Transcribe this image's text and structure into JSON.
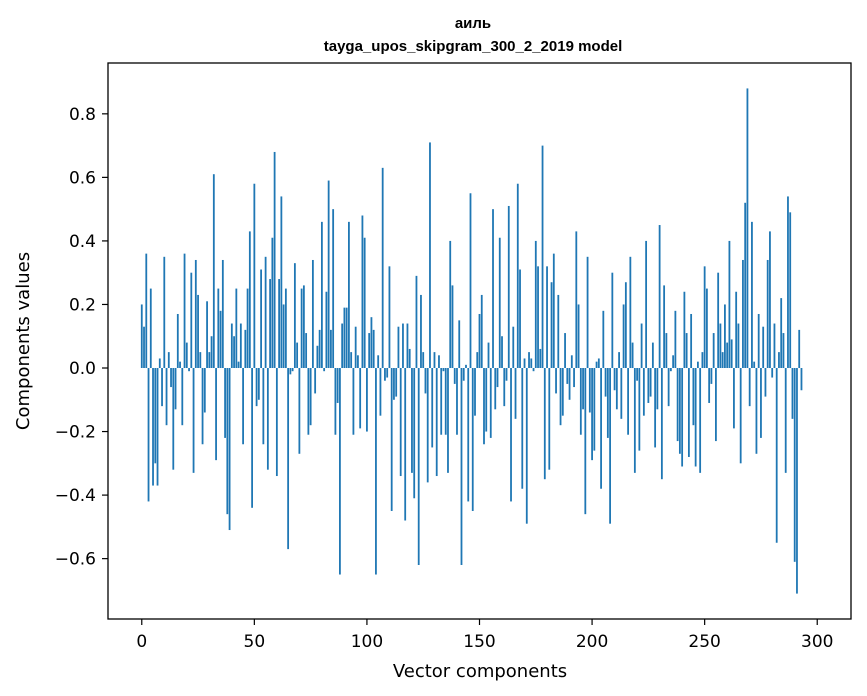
{
  "chart_data": {
    "type": "bar",
    "title": "аиль",
    "subtitle": "tayga_upos_skipgram_300_2_2019 model",
    "xlabel": "Vector components",
    "ylabel": "Components values",
    "xlim": [
      -15,
      315
    ],
    "ylim": [
      -0.79,
      0.96
    ],
    "x_ticks": [
      0,
      50,
      100,
      150,
      200,
      250,
      300
    ],
    "y_ticks": [
      -0.6,
      -0.4,
      -0.2,
      0.0,
      0.2,
      0.4,
      0.6,
      0.8
    ],
    "y_tick_labels": [
      "−0.6",
      "−0.4",
      "−0.2",
      "0.0",
      "0.2",
      "0.4",
      "0.6",
      "0.8"
    ],
    "bar_color": "#1f77b4",
    "grid": false,
    "values": [
      0.2,
      0.13,
      0.36,
      -0.42,
      0.25,
      -0.37,
      -0.3,
      -0.37,
      0.03,
      -0.12,
      0.35,
      -0.18,
      0.05,
      -0.06,
      -0.32,
      -0.13,
      0.17,
      0.02,
      -0.18,
      0.36,
      0.08,
      -0.01,
      0.3,
      -0.33,
      0.34,
      0.23,
      0.05,
      -0.24,
      -0.14,
      0.21,
      0.05,
      0.1,
      0.61,
      -0.29,
      0.25,
      0.18,
      0.34,
      -0.22,
      -0.46,
      -0.51,
      0.14,
      0.1,
      0.25,
      0.02,
      0.14,
      -0.24,
      0.12,
      0.25,
      0.43,
      -0.44,
      0.58,
      -0.12,
      -0.1,
      0.31,
      -0.24,
      0.35,
      -0.32,
      0.28,
      0.41,
      0.68,
      -0.34,
      0.28,
      0.54,
      0.2,
      0.25,
      -0.57,
      -0.02,
      -0.01,
      0.33,
      0.08,
      -0.27,
      0.25,
      0.26,
      0.11,
      -0.21,
      -0.18,
      0.34,
      -0.08,
      0.07,
      0.12,
      0.46,
      -0.01,
      0.24,
      0.59,
      0.12,
      0.5,
      -0.21,
      -0.11,
      -0.65,
      0.14,
      0.19,
      0.19,
      0.46,
      0.05,
      -0.21,
      0.13,
      0.04,
      -0.19,
      0.48,
      0.41,
      -0.2,
      0.11,
      0.16,
      0.12,
      -0.65,
      0.04,
      -0.15,
      0.63,
      -0.04,
      -0.03,
      0.32,
      -0.45,
      -0.1,
      -0.09,
      0.13,
      -0.34,
      0.14,
      -0.48,
      0.14,
      0.06,
      -0.33,
      -0.41,
      0.29,
      -0.62,
      0.23,
      0.05,
      -0.08,
      -0.36,
      0.71,
      -0.25,
      0.05,
      -0.34,
      0.04,
      -0.21,
      -0.01,
      -0.21,
      -0.33,
      0.4,
      0.26,
      -0.05,
      -0.21,
      0.15,
      -0.62,
      -0.04,
      0.01,
      -0.42,
      0.55,
      -0.45,
      -0.15,
      0.05,
      0.17,
      0.23,
      -0.24,
      -0.2,
      0.08,
      -0.22,
      0.5,
      -0.13,
      -0.06,
      0.41,
      0.1,
      -0.12,
      -0.04,
      0.51,
      -0.42,
      0.13,
      -0.16,
      0.58,
      0.31,
      -0.38,
      0.03,
      -0.49,
      0.05,
      0.03,
      -0.01,
      0.4,
      0.32,
      0.06,
      0.7,
      -0.35,
      0.32,
      -0.32,
      0.27,
      0.36,
      -0.08,
      0.23,
      -0.18,
      -0.15,
      0.11,
      -0.05,
      -0.1,
      0.04,
      -0.06,
      0.43,
      0.2,
      -0.21,
      -0.13,
      -0.46,
      0.35,
      -0.14,
      -0.29,
      -0.26,
      0.02,
      0.03,
      -0.38,
      0.18,
      -0.09,
      -0.22,
      -0.49,
      0.3,
      -0.07,
      -0.13,
      0.05,
      -0.16,
      0.2,
      0.27,
      -0.21,
      0.35,
      0.08,
      -0.33,
      -0.04,
      -0.26,
      0.14,
      -0.15,
      0.4,
      -0.11,
      -0.09,
      0.08,
      -0.25,
      -0.13,
      0.45,
      -0.35,
      0.26,
      0.11,
      -0.12,
      -0.01,
      0.04,
      0.18,
      -0.23,
      -0.27,
      -0.31,
      0.24,
      0.11,
      -0.28,
      0.17,
      -0.18,
      -0.31,
      0.02,
      -0.33,
      0.05,
      0.32,
      0.25,
      -0.11,
      -0.05,
      0.11,
      -0.23,
      0.3,
      0.14,
      0.05,
      0.2,
      0.08,
      0.4,
      0.09,
      -0.19,
      0.24,
      0.14,
      -0.3,
      0.34,
      0.52,
      0.88,
      -0.12,
      0.46,
      0.02,
      -0.27,
      0.17,
      -0.22,
      0.13,
      -0.09,
      0.34,
      0.43,
      -0.03,
      0.14,
      -0.55,
      0.05,
      0.22,
      0.11,
      -0.33,
      0.54,
      0.49,
      -0.16,
      -0.61,
      -0.71,
      0.12,
      -0.07
    ]
  }
}
